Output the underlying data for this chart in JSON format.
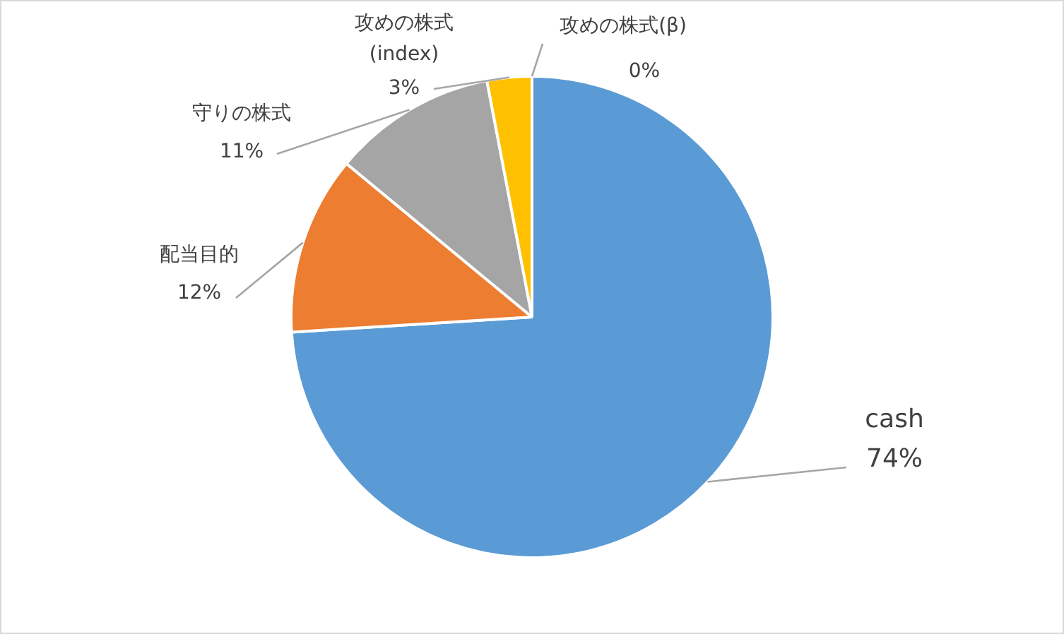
{
  "chart_data": {
    "type": "pie",
    "categories": [
      "cash",
      "配当目的",
      "守りの株式",
      "攻めの株式\n(index)",
      "攻めの株式(β)"
    ],
    "values": [
      74,
      12,
      11,
      3,
      0
    ],
    "colors": [
      "#5b9bd5",
      "#ed7d31",
      "#a5a5a5",
      "#ffc000",
      "#4472c4"
    ],
    "value_labels": [
      "74%",
      "12%",
      "11%",
      "3%",
      "0%"
    ],
    "legend": false
  }
}
